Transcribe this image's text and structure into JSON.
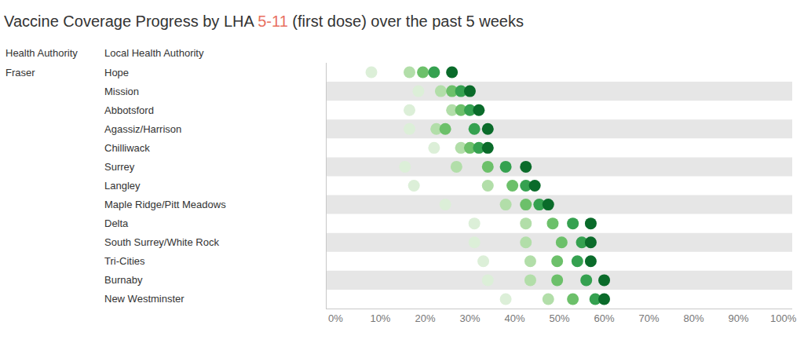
{
  "chart_data": {
    "type": "scatter",
    "orientation": "horizontal",
    "title": "Vaccine Coverage Progress by LHA 5-11 (first dose) over the past 5 weeks",
    "title_highlight": "5-11",
    "column_headers": [
      "Health Authority",
      "Local Health Authority"
    ],
    "group": "Fraser",
    "categories": [
      "Hope",
      "Mission",
      "Abbotsford",
      "Agassiz/Harrison",
      "Chilliwack",
      "Surrey",
      "Langley",
      "Maple Ridge/Pitt Meadows",
      "Delta",
      "South Surrey/White Rock",
      "Tri-Cities",
      "Burnaby",
      "New Westminster"
    ],
    "series": [
      {
        "color": "#dcefd8",
        "values": [
          8,
          18.5,
          16.5,
          16.5,
          22,
          15.5,
          17.5,
          24.5,
          31,
          31,
          33,
          34,
          38
        ]
      },
      {
        "color": "#b2dea9",
        "values": [
          16.5,
          23.5,
          26,
          22.5,
          28,
          27,
          34,
          38,
          42.5,
          42.5,
          43.5,
          43.5,
          47.5
        ]
      },
      {
        "color": "#6cc06a",
        "values": [
          19.5,
          26,
          28,
          24.5,
          30,
          34,
          39.5,
          42.5,
          48.5,
          50.5,
          49.5,
          49.5,
          53
        ]
      },
      {
        "color": "#35a150",
        "values": [
          22,
          28,
          30,
          31,
          32,
          38,
          42.5,
          45.5,
          53,
          55,
          54,
          56,
          58
        ]
      },
      {
        "color": "#0a6b2a",
        "values": [
          26,
          30,
          32,
          34,
          34,
          42.5,
          44.5,
          47.5,
          57,
          57,
          57,
          60,
          60
        ]
      }
    ],
    "xlim": [
      -2,
      102
    ],
    "xticks": [
      {
        "value": 0,
        "label": "0%"
      },
      {
        "value": 10,
        "label": "10%"
      },
      {
        "value": 20,
        "label": "20%"
      },
      {
        "value": 30,
        "label": "30%"
      },
      {
        "value": 40,
        "label": "40%"
      },
      {
        "value": 50,
        "label": "50%"
      },
      {
        "value": 60,
        "label": "60%"
      },
      {
        "value": 70,
        "label": "70%"
      },
      {
        "value": 80,
        "label": "80%"
      },
      {
        "value": 90,
        "label": "90%"
      },
      {
        "value": 100,
        "label": "100%"
      }
    ],
    "grid": false
  }
}
